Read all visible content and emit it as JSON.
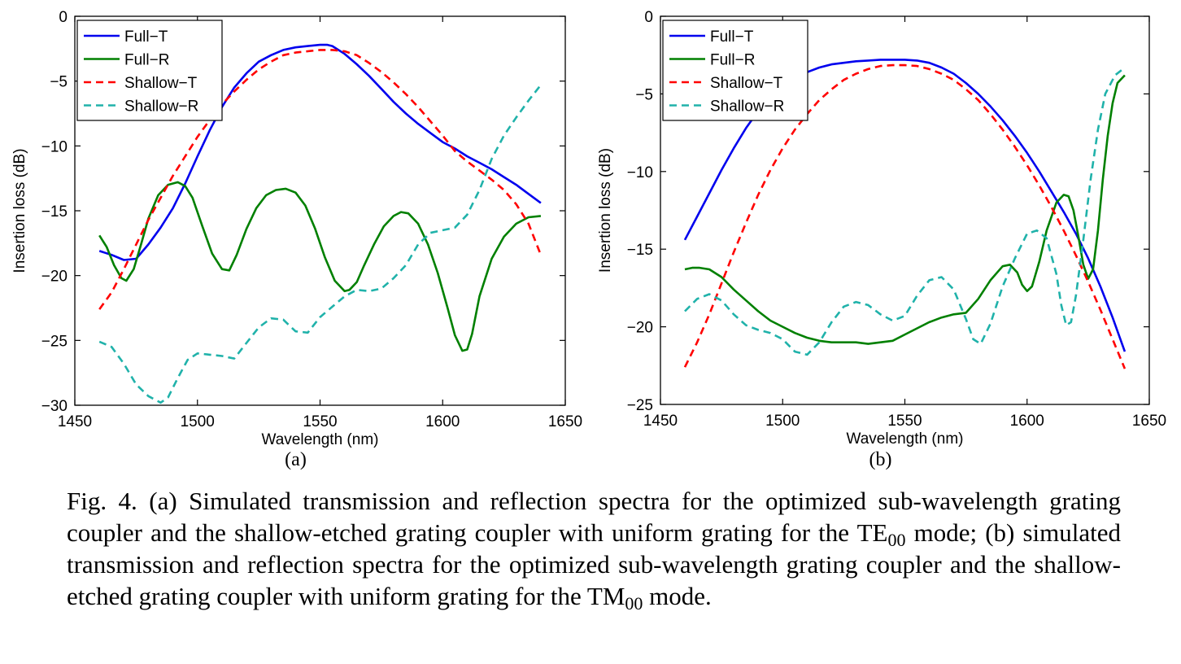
{
  "chart_data": [
    {
      "type": "line",
      "panel_label": "(a)",
      "xlabel": "Wavelength (nm)",
      "ylabel": "Insertion loss (dB)",
      "xlim": [
        1450,
        1650
      ],
      "ylim": [
        -30,
        0
      ],
      "xticks": [
        1450,
        1500,
        1550,
        1600,
        1650
      ],
      "yticks": [
        0,
        -5,
        -10,
        -15,
        -20,
        -25,
        -30
      ],
      "xtick_labels": [
        "1450",
        "1500",
        "1550",
        "1600",
        "1650"
      ],
      "ytick_labels": [
        "0",
        "−5",
        "−10",
        "−15",
        "−20",
        "−25",
        "−30"
      ],
      "legend_position": "top-left",
      "grid": false,
      "series": [
        {
          "name": "Full−T",
          "color": "#0000ee",
          "dash": "solid",
          "x": [
            1460,
            1465,
            1470,
            1475,
            1480,
            1485,
            1490,
            1495,
            1500,
            1505,
            1510,
            1515,
            1520,
            1525,
            1530,
            1535,
            1540,
            1545,
            1550,
            1553,
            1555,
            1560,
            1565,
            1570,
            1575,
            1580,
            1585,
            1590,
            1595,
            1600,
            1605,
            1610,
            1615,
            1620,
            1625,
            1630,
            1635,
            1640
          ],
          "y": [
            -18.1,
            -18.4,
            -18.8,
            -18.7,
            -17.6,
            -16.3,
            -14.8,
            -12.9,
            -10.8,
            -8.8,
            -7.0,
            -5.5,
            -4.4,
            -3.5,
            -3.0,
            -2.6,
            -2.4,
            -2.3,
            -2.2,
            -2.2,
            -2.3,
            -2.9,
            -3.7,
            -4.6,
            -5.6,
            -6.6,
            -7.5,
            -8.3,
            -9.0,
            -9.7,
            -10.2,
            -10.8,
            -11.3,
            -11.8,
            -12.4,
            -13.0,
            -13.7,
            -14.4
          ]
        },
        {
          "name": "Full−R",
          "color": "#008000",
          "dash": "solid",
          "x": [
            1460,
            1463,
            1466,
            1469,
            1471,
            1474,
            1477,
            1480,
            1484,
            1488,
            1492,
            1495,
            1498,
            1502,
            1506,
            1510,
            1513,
            1516,
            1520,
            1524,
            1528,
            1532,
            1536,
            1540,
            1544,
            1548,
            1552,
            1556,
            1560,
            1562,
            1565,
            1568,
            1572,
            1576,
            1580,
            1583,
            1586,
            1590,
            1594,
            1598,
            1602,
            1605,
            1608,
            1610,
            1612,
            1615,
            1620,
            1625,
            1630,
            1635,
            1640
          ],
          "y": [
            -16.9,
            -17.8,
            -19.2,
            -20.2,
            -20.4,
            -19.5,
            -17.6,
            -15.6,
            -13.8,
            -13.0,
            -12.8,
            -13.1,
            -14.0,
            -16.2,
            -18.3,
            -19.5,
            -19.6,
            -18.4,
            -16.4,
            -14.8,
            -13.8,
            -13.4,
            -13.3,
            -13.6,
            -14.6,
            -16.4,
            -18.6,
            -20.4,
            -21.2,
            -21.1,
            -20.5,
            -19.2,
            -17.6,
            -16.2,
            -15.4,
            -15.1,
            -15.2,
            -16.0,
            -17.6,
            -19.8,
            -22.5,
            -24.6,
            -25.8,
            -25.7,
            -24.5,
            -21.6,
            -18.7,
            -17.0,
            -16.0,
            -15.5,
            -15.4
          ]
        },
        {
          "name": "Shallow−T",
          "color": "#ff0000",
          "dash": "dashed",
          "x": [
            1460,
            1465,
            1470,
            1475,
            1480,
            1485,
            1490,
            1495,
            1500,
            1505,
            1510,
            1515,
            1520,
            1525,
            1530,
            1535,
            1540,
            1545,
            1550,
            1555,
            1560,
            1565,
            1570,
            1575,
            1580,
            1585,
            1590,
            1595,
            1600,
            1605,
            1610,
            1615,
            1620,
            1625,
            1630,
            1635,
            1640
          ],
          "y": [
            -22.6,
            -21.3,
            -19.5,
            -17.6,
            -15.7,
            -14.0,
            -12.3,
            -10.8,
            -9.3,
            -8.0,
            -6.8,
            -5.8,
            -4.9,
            -4.1,
            -3.5,
            -3.0,
            -2.8,
            -2.7,
            -2.6,
            -2.6,
            -2.7,
            -3.0,
            -3.6,
            -4.3,
            -5.1,
            -6.0,
            -7.0,
            -8.1,
            -9.2,
            -10.4,
            -11.2,
            -11.9,
            -12.6,
            -13.4,
            -14.5,
            -16.0,
            -18.4
          ]
        },
        {
          "name": "Shallow−R",
          "color": "#20b2aa",
          "dash": "dashed",
          "x": [
            1460,
            1465,
            1470,
            1475,
            1480,
            1485,
            1488,
            1492,
            1496,
            1500,
            1505,
            1510,
            1515,
            1520,
            1525,
            1530,
            1535,
            1540,
            1545,
            1550,
            1555,
            1560,
            1565,
            1570,
            1575,
            1580,
            1585,
            1590,
            1595,
            1600,
            1605,
            1610,
            1615,
            1620,
            1625,
            1630,
            1635,
            1640
          ],
          "y": [
            -25.1,
            -25.5,
            -26.8,
            -28.4,
            -29.3,
            -29.8,
            -29.4,
            -27.9,
            -26.5,
            -26.0,
            -26.1,
            -26.2,
            -26.4,
            -25.2,
            -24.0,
            -23.3,
            -23.4,
            -24.3,
            -24.4,
            -23.2,
            -22.4,
            -21.6,
            -21.1,
            -21.2,
            -21.0,
            -20.2,
            -19.2,
            -17.6,
            -16.7,
            -16.5,
            -16.3,
            -15.3,
            -13.4,
            -11.0,
            -9.2,
            -7.8,
            -6.5,
            -5.3
          ]
        }
      ]
    },
    {
      "type": "line",
      "panel_label": "(b)",
      "xlabel": "Wavelength (nm)",
      "ylabel": "Insertion loss (dB)",
      "xlim": [
        1450,
        1650
      ],
      "ylim": [
        -25,
        0
      ],
      "xticks": [
        1450,
        1500,
        1550,
        1600,
        1650
      ],
      "yticks": [
        0,
        -5,
        -10,
        -15,
        -20,
        -25
      ],
      "xtick_labels": [
        "1450",
        "1500",
        "1550",
        "1600",
        "1650"
      ],
      "ytick_labels": [
        "0",
        "−5",
        "−10",
        "−15",
        "−20",
        "−25"
      ],
      "legend_position": "top-left",
      "grid": false,
      "series": [
        {
          "name": "Full−T",
          "color": "#0000ee",
          "dash": "solid",
          "x": [
            1460,
            1465,
            1470,
            1475,
            1480,
            1485,
            1490,
            1495,
            1500,
            1505,
            1510,
            1515,
            1520,
            1525,
            1530,
            1535,
            1540,
            1545,
            1550,
            1555,
            1560,
            1565,
            1570,
            1575,
            1580,
            1585,
            1590,
            1595,
            1600,
            1605,
            1610,
            1615,
            1620,
            1625,
            1630,
            1635,
            1640
          ],
          "y": [
            -14.4,
            -12.9,
            -11.4,
            -9.9,
            -8.5,
            -7.2,
            -6.1,
            -5.2,
            -4.5,
            -4.0,
            -3.6,
            -3.3,
            -3.1,
            -3.0,
            -2.9,
            -2.85,
            -2.8,
            -2.8,
            -2.8,
            -2.85,
            -3.0,
            -3.3,
            -3.7,
            -4.3,
            -5.0,
            -5.8,
            -6.7,
            -7.7,
            -8.8,
            -10.0,
            -11.3,
            -12.6,
            -14.0,
            -15.6,
            -17.4,
            -19.4,
            -21.6
          ]
        },
        {
          "name": "Full−R",
          "color": "#008000",
          "dash": "solid",
          "x": [
            1460,
            1463,
            1466,
            1470,
            1475,
            1480,
            1485,
            1490,
            1495,
            1500,
            1505,
            1510,
            1515,
            1520,
            1525,
            1530,
            1535,
            1540,
            1545,
            1550,
            1555,
            1560,
            1565,
            1570,
            1575,
            1580,
            1585,
            1590,
            1593,
            1596,
            1598,
            1600,
            1602,
            1605,
            1608,
            1612,
            1615,
            1617,
            1619,
            1621,
            1623,
            1625,
            1627,
            1629,
            1631,
            1633,
            1635,
            1637,
            1640
          ],
          "y": [
            -16.3,
            -16.2,
            -16.2,
            -16.3,
            -16.8,
            -17.6,
            -18.3,
            -19.0,
            -19.6,
            -20.0,
            -20.4,
            -20.7,
            -20.9,
            -21.0,
            -21.0,
            -21.0,
            -21.1,
            -21.0,
            -20.9,
            -20.5,
            -20.1,
            -19.7,
            -19.4,
            -19.2,
            -19.1,
            -18.2,
            -17.0,
            -16.1,
            -16.0,
            -16.5,
            -17.3,
            -17.7,
            -17.4,
            -15.8,
            -13.8,
            -12.0,
            -11.5,
            -11.6,
            -12.5,
            -14.2,
            -16.0,
            -16.9,
            -16.3,
            -13.8,
            -10.5,
            -7.7,
            -5.6,
            -4.3,
            -3.8
          ]
        },
        {
          "name": "Shallow−T",
          "color": "#ff0000",
          "dash": "dashed",
          "x": [
            1460,
            1465,
            1470,
            1475,
            1480,
            1485,
            1490,
            1495,
            1500,
            1505,
            1510,
            1515,
            1520,
            1525,
            1530,
            1535,
            1540,
            1545,
            1550,
            1555,
            1560,
            1565,
            1570,
            1575,
            1580,
            1585,
            1590,
            1595,
            1600,
            1605,
            1610,
            1615,
            1620,
            1625,
            1630,
            1635,
            1640
          ],
          "y": [
            -22.6,
            -21.0,
            -19.2,
            -17.2,
            -15.2,
            -13.3,
            -11.5,
            -9.9,
            -8.5,
            -7.3,
            -6.3,
            -5.4,
            -4.7,
            -4.1,
            -3.7,
            -3.4,
            -3.2,
            -3.15,
            -3.15,
            -3.2,
            -3.4,
            -3.7,
            -4.1,
            -4.7,
            -5.4,
            -6.3,
            -7.3,
            -8.4,
            -9.6,
            -10.9,
            -12.3,
            -13.8,
            -15.4,
            -17.1,
            -18.9,
            -20.8,
            -22.7
          ]
        },
        {
          "name": "Shallow−R",
          "color": "#20b2aa",
          "dash": "dashed",
          "x": [
            1460,
            1465,
            1470,
            1475,
            1480,
            1485,
            1490,
            1495,
            1500,
            1505,
            1510,
            1515,
            1520,
            1525,
            1530,
            1535,
            1540,
            1545,
            1550,
            1555,
            1560,
            1565,
            1570,
            1575,
            1578,
            1581,
            1585,
            1590,
            1595,
            1600,
            1604,
            1608,
            1612,
            1614,
            1616,
            1618,
            1620,
            1623,
            1626,
            1629,
            1632,
            1636,
            1640
          ],
          "y": [
            -19.0,
            -18.2,
            -17.9,
            -18.3,
            -19.2,
            -19.9,
            -20.2,
            -20.4,
            -20.8,
            -21.6,
            -21.8,
            -21.0,
            -19.7,
            -18.7,
            -18.4,
            -18.6,
            -19.2,
            -19.6,
            -19.3,
            -18.0,
            -17.0,
            -16.8,
            -17.6,
            -19.5,
            -20.8,
            -21.1,
            -19.8,
            -17.4,
            -15.6,
            -14.0,
            -13.8,
            -14.3,
            -16.6,
            -18.6,
            -19.9,
            -19.7,
            -18.0,
            -14.4,
            -10.5,
            -7.3,
            -5.0,
            -3.8,
            -3.3
          ]
        }
      ]
    }
  ],
  "caption": {
    "part1": "Fig. 4. (a) Simulated transmission and reflection spectra for the optimized sub-wavelength grating coupler and the shallow-etched grating coupler with uniform grating for the TE",
    "sub1": "00",
    "part2": " mode; (b) simulated transmission and reflection spectra for the optimized sub-wavelength grating coupler and the shallow-etched grating coupler with uniform grating for the TM",
    "sub2": "00",
    "part3": " mode."
  }
}
